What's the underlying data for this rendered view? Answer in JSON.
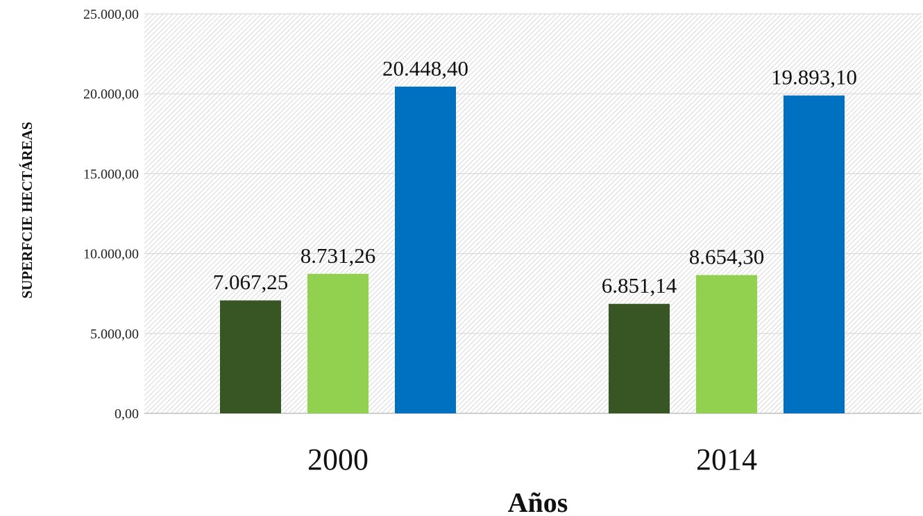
{
  "chart_data": {
    "type": "bar",
    "categories": [
      "2000",
      "2014"
    ],
    "series": [
      {
        "values": [
          7067.25,
          6851.14
        ],
        "color": "#375623"
      },
      {
        "values": [
          8731.26,
          8654.3
        ],
        "color": "#92d050"
      },
      {
        "values": [
          20448.4,
          19893.1
        ],
        "color": "#0070c0"
      }
    ],
    "data_labels": [
      [
        "7.067,25",
        "6.851,14"
      ],
      [
        "8.731,26",
        "8.654,30"
      ],
      [
        "20.448,40",
        "19.893,10"
      ]
    ],
    "y_ticks": [
      {
        "value": 0,
        "label": "0,00"
      },
      {
        "value": 5000,
        "label": "5.000,00"
      },
      {
        "value": 10000,
        "label": "10.000,00"
      },
      {
        "value": 15000,
        "label": "15.000,00"
      },
      {
        "value": 20000,
        "label": "20.000,00"
      },
      {
        "value": 25000,
        "label": "25.000,00"
      }
    ],
    "ylim": [
      0,
      25000
    ],
    "xlabel": "Años",
    "ylabel": "SUPERFCIE HECTÁREAS",
    "grid": true,
    "legend": "none"
  }
}
